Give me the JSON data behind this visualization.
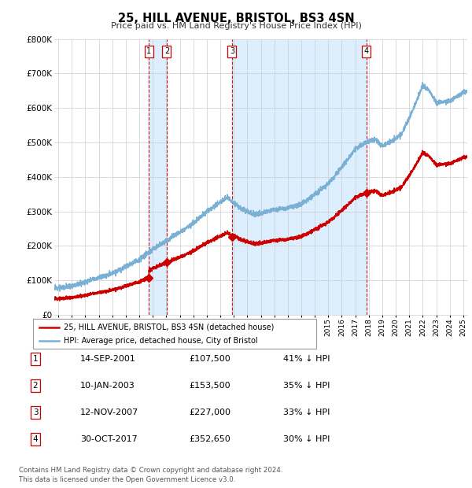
{
  "title": "25, HILL AVENUE, BRISTOL, BS3 4SN",
  "subtitle": "Price paid vs. HM Land Registry's House Price Index (HPI)",
  "ylim": [
    0,
    800000
  ],
  "yticks": [
    0,
    100000,
    200000,
    300000,
    400000,
    500000,
    600000,
    700000,
    800000
  ],
  "xlim_year": [
    1994.7,
    2025.3
  ],
  "sales": [
    {
      "num": 1,
      "year": 2001.71,
      "price": 107500,
      "label": "14-SEP-2001",
      "price_str": "£107,500",
      "pct": "41% ↓ HPI"
    },
    {
      "num": 2,
      "year": 2003.03,
      "price": 153500,
      "label": "10-JAN-2003",
      "price_str": "£153,500",
      "pct": "35% ↓ HPI"
    },
    {
      "num": 3,
      "year": 2007.87,
      "price": 227000,
      "label": "12-NOV-2007",
      "price_str": "£227,000",
      "pct": "33% ↓ HPI"
    },
    {
      "num": 4,
      "year": 2017.83,
      "price": 352650,
      "label": "30-OCT-2017",
      "price_str": "£352,650",
      "pct": "30% ↓ HPI"
    }
  ],
  "property_color": "#cc0000",
  "hpi_color": "#7ab0d4",
  "shade_color": "#ddeeff",
  "vline_color": "#cc0000",
  "background_color": "#ffffff",
  "legend_label_property": "25, HILL AVENUE, BRISTOL, BS3 4SN (detached house)",
  "legend_label_hpi": "HPI: Average price, detached house, City of Bristol",
  "footer": "Contains HM Land Registry data © Crown copyright and database right 2024.\nThis data is licensed under the Open Government Licence v3.0."
}
